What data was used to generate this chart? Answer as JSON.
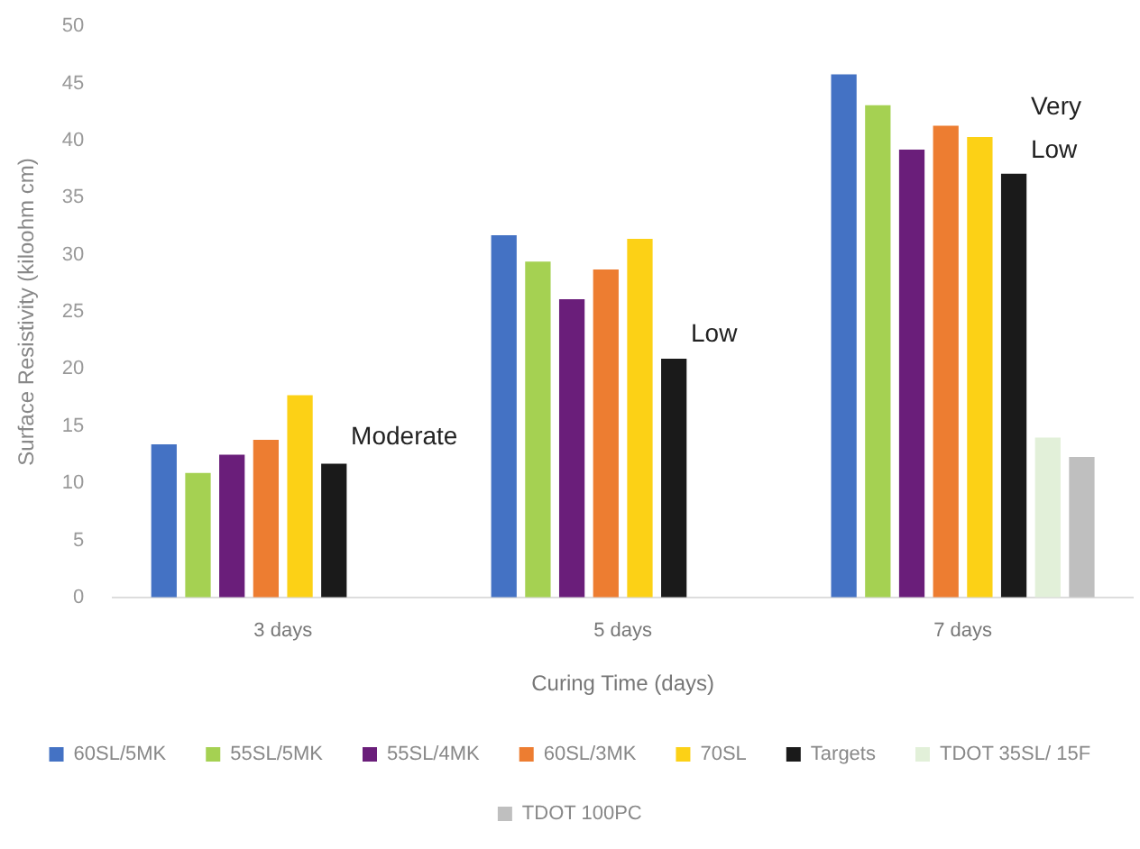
{
  "chart_data": {
    "type": "bar",
    "xlabel": "Curing Time (days)",
    "ylabel": "Surface Resistivity (kiloohm cm)",
    "categories": [
      "3 days",
      "5 days",
      "7 days"
    ],
    "ylim": [
      0,
      50
    ],
    "yticks": [
      0,
      5,
      10,
      15,
      20,
      25,
      30,
      35,
      40,
      45,
      50
    ],
    "grid": false,
    "legend": "bottom",
    "series": [
      {
        "name": "60SL/5MK",
        "color": "#4472c4",
        "values": [
          13.4,
          31.7,
          45.8
        ]
      },
      {
        "name": "55SL/5MK",
        "color": "#a5d152",
        "values": [
          10.9,
          29.4,
          43.1
        ]
      },
      {
        "name": "55SL/4MK",
        "color": "#6a1e7a",
        "values": [
          12.5,
          26.1,
          39.2
        ]
      },
      {
        "name": "60SL/3MK",
        "color": "#ed7d31",
        "values": [
          13.8,
          28.7,
          41.3
        ]
      },
      {
        "name": "70SL",
        "color": "#fcd116",
        "values": [
          17.7,
          31.4,
          40.3
        ]
      },
      {
        "name": "Targets",
        "color": "#1a1a1a",
        "values": [
          11.7,
          20.9,
          37.1
        ]
      },
      {
        "name": "TDOT 35SL/ 15F",
        "color": "#e2f0d9",
        "values": [
          null,
          null,
          14.0
        ]
      },
      {
        "name": "TDOT 100PC",
        "color": "#bfbfbf",
        "values": [
          null,
          null,
          12.3
        ]
      }
    ],
    "annotations": [
      {
        "text": "Moderate",
        "x": "3 days",
        "y": 14
      },
      {
        "text": "Low",
        "x": "5 days",
        "y": 23
      },
      {
        "text": "Very\nLow",
        "x": "7 days",
        "y": 41
      }
    ]
  }
}
